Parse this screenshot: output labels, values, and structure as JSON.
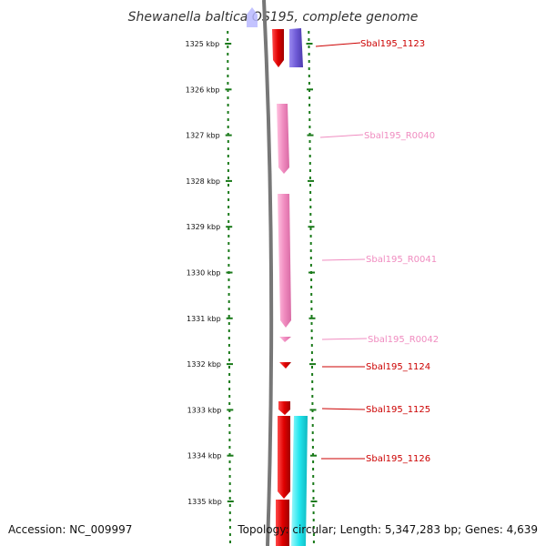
{
  "title": "Shewanella baltica OS195, complete genome",
  "ruler": {
    "unit": "kbp",
    "ticks": [
      1325,
      1326,
      1327,
      1328,
      1329,
      1330,
      1331,
      1332,
      1333,
      1334,
      1335
    ]
  },
  "features": [
    {
      "label": "Sbal195_1123",
      "type": "CDS",
      "color": "#e00000"
    },
    {
      "label": "Sbal195_R0040",
      "type": "rRNA",
      "color": "#f07ab8"
    },
    {
      "label": "Sbal195_R0041",
      "type": "rRNA",
      "color": "#f07ab8"
    },
    {
      "label": "Sbal195_R0042",
      "type": "tRNA",
      "color": "#f07ab8"
    },
    {
      "label": "Sbal195_1124",
      "type": "CDS",
      "color": "#e00000"
    },
    {
      "label": "Sbal195_1125",
      "type": "CDS",
      "color": "#e00000"
    },
    {
      "label": "Sbal195_1126",
      "type": "CDS",
      "color": "#e00000"
    }
  ],
  "colors": {
    "cds": "#e00000",
    "rna": "#f07ab8",
    "purple_feature": "#7b68d8",
    "cyan_feature": "#22e6ee",
    "backbone": "#777777",
    "ruler": "#1a7a1a"
  },
  "footer": {
    "accession": "Accession: NC_009997",
    "summary": "Topology: circular; Length: 5,347,283 bp; Genes: 4,639"
  }
}
